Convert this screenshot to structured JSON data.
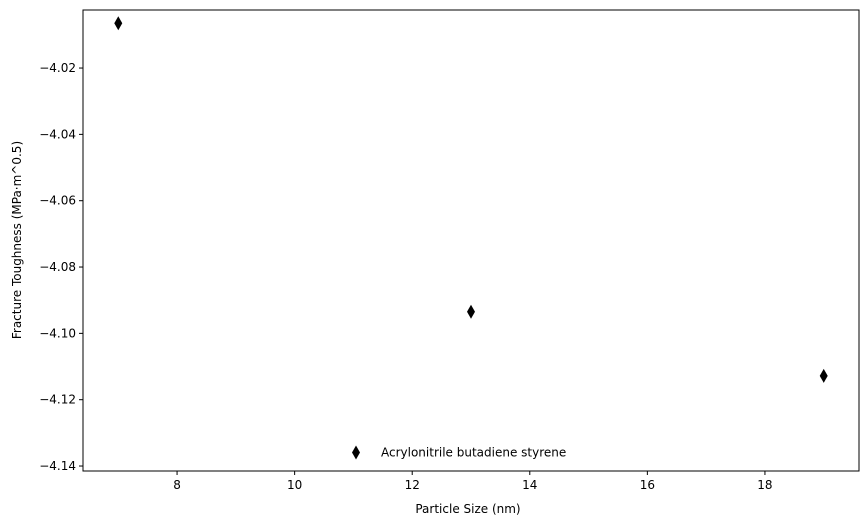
{
  "chart_data": {
    "type": "scatter",
    "title": "",
    "xlabel": "Particle Size (nm)",
    "ylabel": "Fracture Toughness (MPa·m^0.5)",
    "xlim": [
      6.4,
      19.6
    ],
    "ylim": [
      -4.1415,
      -4.0025
    ],
    "xticks": [
      8,
      10,
      12,
      14,
      16,
      18
    ],
    "yticks": [
      -4.14,
      -4.12,
      -4.1,
      -4.08,
      -4.06,
      -4.04,
      -4.02
    ],
    "ytick_labels": [
      "−4.14",
      "−4.12",
      "−4.10",
      "−4.08",
      "−4.06",
      "−4.04",
      "−4.02"
    ],
    "grid": false,
    "legend_position": "bottom-center",
    "series": [
      {
        "name": "Acrylonitrile butadiene styrene",
        "marker": "thin-diamond",
        "color": "#000000",
        "x": [
          7,
          13,
          19
        ],
        "y": [
          -4.0065,
          -4.0935,
          -4.1128
        ]
      }
    ]
  }
}
